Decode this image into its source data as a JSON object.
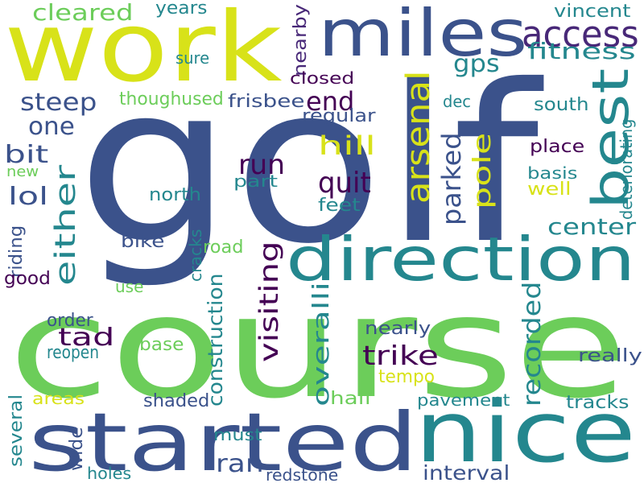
{
  "words": [
    {
      "text": "golf",
      "color": "#3b528b"
    },
    {
      "text": "course",
      "color": "#6ccd5a"
    },
    {
      "text": "work",
      "color": "#d8e219"
    },
    {
      "text": "started",
      "color": "#3b528b"
    },
    {
      "text": "nice",
      "color": "#24878e"
    },
    {
      "text": "miles",
      "color": "#3b528b"
    },
    {
      "text": "direction",
      "color": "#24878e"
    },
    {
      "text": "best",
      "color": "#24878e"
    },
    {
      "text": "access",
      "color": "#482878"
    },
    {
      "text": "arsenal",
      "color": "#d8e219"
    },
    {
      "text": "either",
      "color": "#24878e"
    },
    {
      "text": "cleared",
      "color": "#6ccd5a"
    },
    {
      "text": "visiting",
      "color": "#440154"
    },
    {
      "text": "overalli",
      "color": "#24878e"
    },
    {
      "text": "recorded",
      "color": "#24878e"
    },
    {
      "text": "parked",
      "color": "#3b528b"
    },
    {
      "text": "pole",
      "color": "#d8e219"
    },
    {
      "text": "fitness",
      "color": "#24878e"
    },
    {
      "text": "steep",
      "color": "#3b528b"
    },
    {
      "text": "one",
      "color": "#3b528b"
    },
    {
      "text": "run",
      "color": "#440154"
    },
    {
      "text": "quit",
      "color": "#440154"
    },
    {
      "text": "hill",
      "color": "#d8e219"
    },
    {
      "text": "end",
      "color": "#440154"
    },
    {
      "text": "gps",
      "color": "#24878e"
    },
    {
      "text": "trike",
      "color": "#440154"
    },
    {
      "text": "center",
      "color": "#24878e"
    },
    {
      "text": "construction",
      "color": "#24878e"
    },
    {
      "text": "lol",
      "color": "#3b528b"
    },
    {
      "text": "bit",
      "color": "#3b528b"
    },
    {
      "text": "tad",
      "color": "#440154"
    },
    {
      "text": "ran",
      "color": "#3b528b"
    },
    {
      "text": "nearby",
      "color": "#482878"
    },
    {
      "text": "closed",
      "color": "#440154"
    },
    {
      "text": "sure",
      "color": "#24878e"
    },
    {
      "text": "years",
      "color": "#24878e"
    },
    {
      "text": "vincent",
      "color": "#24878e"
    },
    {
      "text": "thoughused",
      "color": "#6ccd5a"
    },
    {
      "text": "frisbee",
      "color": "#3b528b"
    },
    {
      "text": "regular",
      "color": "#3b528b"
    },
    {
      "text": "dec",
      "color": "#24878e"
    },
    {
      "text": "south",
      "color": "#24878e"
    },
    {
      "text": "place",
      "color": "#440154"
    },
    {
      "text": "basis",
      "color": "#24878e"
    },
    {
      "text": "well",
      "color": "#d8e219"
    },
    {
      "text": "deteriorating",
      "color": "#24878e"
    },
    {
      "text": "part",
      "color": "#24878e"
    },
    {
      "text": "north",
      "color": "#24878e"
    },
    {
      "text": "feet",
      "color": "#24878e"
    },
    {
      "text": "new",
      "color": "#6ccd5a"
    },
    {
      "text": "riding",
      "color": "#3b528b"
    },
    {
      "text": "good",
      "color": "#440154"
    },
    {
      "text": "bike",
      "color": "#3b528b"
    },
    {
      "text": "road",
      "color": "#6ccd5a"
    },
    {
      "text": "cracks",
      "color": "#24878e"
    },
    {
      "text": "use",
      "color": "#6ccd5a"
    },
    {
      "text": "order",
      "color": "#3b528b"
    },
    {
      "text": "reopen",
      "color": "#24878e"
    },
    {
      "text": "base",
      "color": "#6ccd5a"
    },
    {
      "text": "nearly",
      "color": "#3b528b"
    },
    {
      "text": "really",
      "color": "#3b528b"
    },
    {
      "text": "tempo",
      "color": "#d8e219"
    },
    {
      "text": "areas",
      "color": "#d8e219"
    },
    {
      "text": "shaded",
      "color": "#3b528b"
    },
    {
      "text": "half",
      "color": "#6ccd5a"
    },
    {
      "text": "pavement",
      "color": "#24878e"
    },
    {
      "text": "tracks",
      "color": "#24878e"
    },
    {
      "text": "several",
      "color": "#24878e"
    },
    {
      "text": "wide",
      "color": "#3b528b"
    },
    {
      "text": "must",
      "color": "#24878e"
    },
    {
      "text": "holes",
      "color": "#24878e"
    },
    {
      "text": "redstone",
      "color": "#3b528b"
    },
    {
      "text": "interval",
      "color": "#3b528b"
    }
  ]
}
